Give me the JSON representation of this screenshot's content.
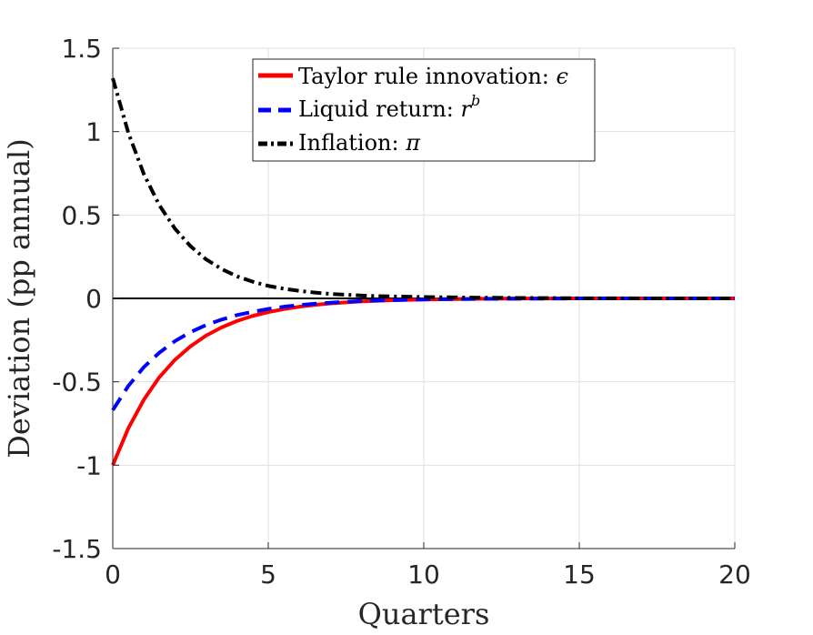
{
  "chart_data": {
    "type": "line",
    "xlabel": "Quarters",
    "ylabel": "Deviation (pp annual)",
    "xlim": [
      0,
      20
    ],
    "ylim": [
      -1.5,
      1.5
    ],
    "xticks": [
      0,
      5,
      10,
      15,
      20
    ],
    "yticks": [
      -1.5,
      -1,
      -0.5,
      0,
      0.5,
      1,
      1.5
    ],
    "xtick_labels": [
      "0",
      "5",
      "10",
      "15",
      "20"
    ],
    "ytick_labels": [
      "-1.5",
      "-1",
      "-0.5",
      "0",
      "0.5",
      "1",
      "1.5"
    ],
    "grid": true,
    "legend_position": "top-center",
    "zero_line": true,
    "x": [
      0,
      0.5,
      1,
      1.5,
      2,
      2.5,
      3,
      3.5,
      4,
      4.5,
      5,
      5.5,
      6,
      6.5,
      7,
      7.5,
      8,
      8.5,
      9,
      9.5,
      10,
      11,
      12,
      13,
      14,
      15,
      16,
      17,
      18,
      19,
      20
    ],
    "series": [
      {
        "name": "Taylor rule innovation: ",
        "name_symbol": "ϵ",
        "color": "#ff0000",
        "dash": "solid",
        "values": [
          -1.0,
          -0.779,
          -0.607,
          -0.472,
          -0.368,
          -0.287,
          -0.223,
          -0.174,
          -0.135,
          -0.105,
          -0.082,
          -0.064,
          -0.05,
          -0.039,
          -0.03,
          -0.024,
          -0.018,
          -0.014,
          -0.011,
          -0.009,
          -0.007,
          -0.004,
          -0.002,
          -0.001,
          -0.001,
          0.0,
          0.0,
          0.0,
          0.0,
          0.0,
          0.0
        ]
      },
      {
        "name": "Liquid return: ",
        "name_symbol": "r",
        "name_superscript": "b",
        "color": "#0000ff",
        "dash": "dashed",
        "values": [
          -0.67,
          -0.525,
          -0.412,
          -0.325,
          -0.256,
          -0.202,
          -0.16,
          -0.127,
          -0.1,
          -0.08,
          -0.063,
          -0.05,
          -0.04,
          -0.032,
          -0.026,
          -0.02,
          -0.016,
          -0.013,
          -0.01,
          -0.008,
          -0.006,
          -0.004,
          -0.003,
          -0.002,
          -0.001,
          0.0,
          0.0,
          0.0,
          0.0,
          0.0,
          0.0
        ]
      },
      {
        "name": "Inflation: ",
        "name_symbol": "π",
        "color": "#000000",
        "dash": "dashdot",
        "values": [
          1.32,
          0.993,
          0.745,
          0.558,
          0.418,
          0.313,
          0.234,
          0.176,
          0.132,
          0.1,
          0.075,
          0.058,
          0.045,
          0.035,
          0.027,
          0.022,
          0.017,
          0.014,
          0.012,
          0.01,
          0.008,
          0.006,
          0.004,
          0.003,
          0.002,
          0.001,
          0.001,
          0.0,
          0.0,
          0.0,
          0.0
        ]
      }
    ]
  }
}
